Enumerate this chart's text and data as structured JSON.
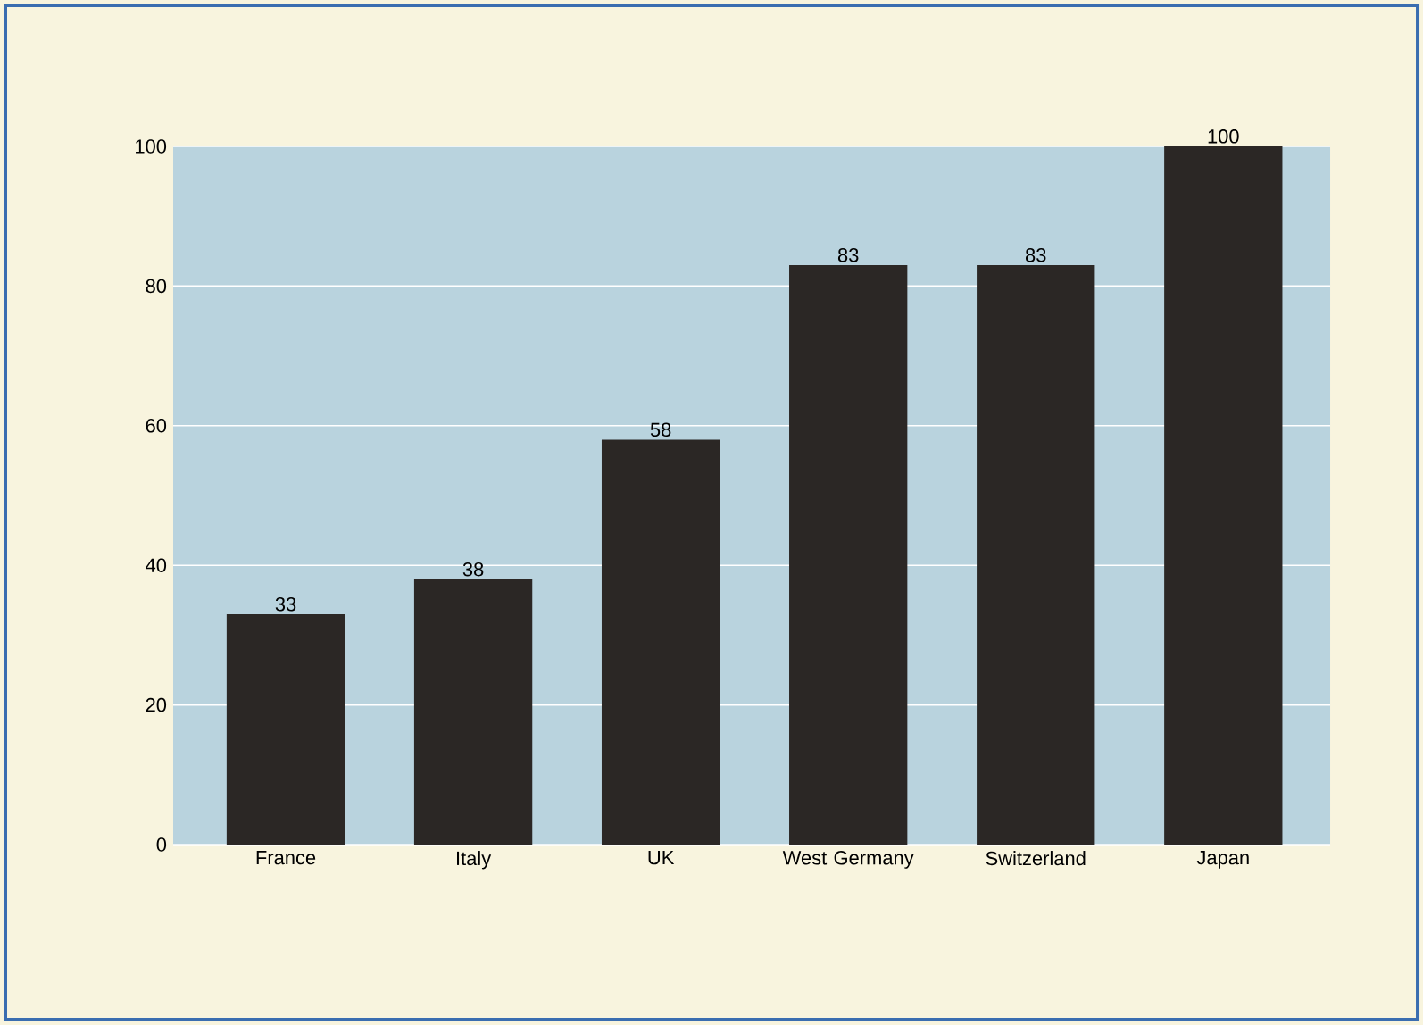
{
  "chart_data": {
    "type": "bar",
    "categories": [
      "France",
      "Italy",
      "UK",
      "West Germany",
      "Switzerland",
      "Japan"
    ],
    "values": [
      33,
      38,
      58,
      83,
      83,
      100
    ],
    "color": "#2b2725",
    "ylim": [
      0,
      100
    ],
    "yticks": [
      0,
      20,
      40,
      60,
      80,
      100
    ],
    "grid": "y",
    "data_labels": true
  }
}
